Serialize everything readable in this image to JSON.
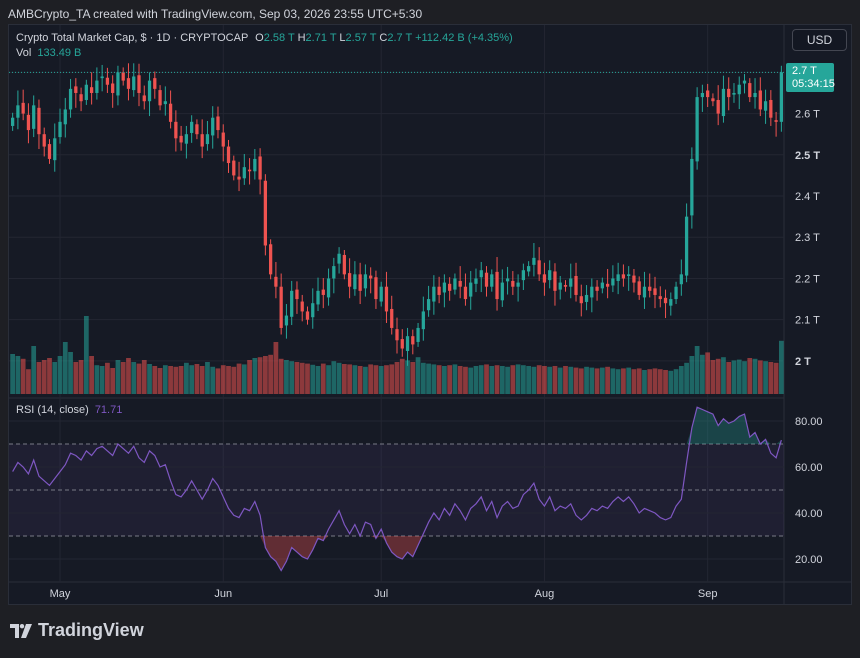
{
  "header": {
    "text": "AMBCrypto_TA created with TradingView.com, Sep 03, 2026 23:55 UTC+5:30"
  },
  "legend": {
    "title": "Crypto Total Market Cap, $ · 1D · CRYPTOCAP",
    "open_label": "O",
    "open": "2.58 T",
    "high_label": "H",
    "high": "2.71 T",
    "low_label": "L",
    "low": "2.57 T",
    "close_label": "C",
    "close": "2.7 T",
    "change": "+112.42 B (+4.35%)",
    "vol_label": "Vol",
    "vol": "133.49 B"
  },
  "rsi_legend": {
    "label": "RSI (14, close)",
    "value": "71.71"
  },
  "currency_button": "USD",
  "price_badge": {
    "price": "2.7 T",
    "countdown": "05:34:15"
  },
  "footer": {
    "brand": "TradingView"
  },
  "colors": {
    "up": "#26a69a",
    "down": "#ef5350",
    "rsi": "#7e57c2",
    "bg": "#161a25"
  },
  "chart_data": [
    {
      "type": "candlestick",
      "title": "Crypto Total Market Cap",
      "y_unit": "T",
      "ylim": [
        1.91,
        2.73
      ],
      "y_ticks": [
        "2.7 T",
        "2.6 T",
        "2.5 T",
        "2.4 T",
        "2.3 T",
        "2.2 T",
        "2.1 T",
        "2 T"
      ],
      "x_ticks": [
        "May",
        "Jun",
        "Jul",
        "Aug",
        "Sep"
      ],
      "start_date": "2026-04-22",
      "close": [
        2.59,
        2.62,
        2.6,
        2.56,
        2.62,
        2.55,
        2.52,
        2.49,
        2.54,
        2.58,
        2.61,
        2.66,
        2.65,
        2.63,
        2.67,
        2.65,
        2.68,
        2.69,
        2.67,
        2.65,
        2.7,
        2.68,
        2.66,
        2.69,
        2.65,
        2.63,
        2.68,
        2.66,
        2.62,
        2.63,
        2.58,
        2.54,
        2.53,
        2.55,
        2.58,
        2.55,
        2.52,
        2.55,
        2.59,
        2.56,
        2.52,
        2.48,
        2.45,
        2.44,
        2.47,
        2.46,
        2.49,
        2.44,
        2.28,
        2.21,
        2.18,
        2.08,
        2.11,
        2.17,
        2.15,
        2.12,
        2.1,
        2.14,
        2.17,
        2.16,
        2.2,
        2.23,
        2.26,
        2.21,
        2.18,
        2.21,
        2.17,
        2.21,
        2.2,
        2.15,
        2.18,
        2.12,
        2.08,
        2.05,
        2.03,
        2.06,
        2.04,
        2.08,
        2.12,
        2.15,
        2.18,
        2.16,
        2.19,
        2.17,
        2.2,
        2.18,
        2.15,
        2.19,
        2.2,
        2.22,
        2.18,
        2.21,
        2.15,
        2.19,
        2.2,
        2.18,
        2.19,
        2.22,
        2.23,
        2.25,
        2.21,
        2.19,
        2.22,
        2.17,
        2.19,
        2.18,
        2.2,
        2.16,
        2.14,
        2.16,
        2.18,
        2.17,
        2.19,
        2.18,
        2.2,
        2.21,
        2.2,
        2.21,
        2.19,
        2.16,
        2.18,
        2.17,
        2.16,
        2.15,
        2.14,
        2.15,
        2.18,
        2.21,
        2.35,
        2.49,
        2.64,
        2.65,
        2.64,
        2.63,
        2.6,
        2.66,
        2.64,
        2.65,
        2.67,
        2.68,
        2.64,
        2.65,
        2.61,
        2.63,
        2.59,
        2.58,
        2.7
      ],
      "volume": [
        100,
        95,
        88,
        62,
        120,
        80,
        85,
        90,
        80,
        95,
        130,
        105,
        80,
        85,
        195,
        95,
        72,
        70,
        78,
        65,
        85,
        80,
        90,
        80,
        76,
        85,
        75,
        70,
        65,
        72,
        70,
        68,
        70,
        78,
        72,
        75,
        70,
        80,
        68,
        64,
        72,
        70,
        68,
        76,
        74,
        85,
        90,
        92,
        95,
        98,
        130,
        88,
        85,
        82,
        80,
        78,
        76,
        73,
        70,
        76,
        72,
        82,
        78,
        75,
        74,
        72,
        70,
        68,
        74,
        72,
        70,
        72,
        74,
        80,
        88,
        84,
        80,
        92,
        78,
        76,
        74,
        72,
        70,
        72,
        74,
        70,
        68,
        66,
        70,
        72,
        74,
        70,
        72,
        70,
        68,
        72,
        74,
        72,
        70,
        68,
        72,
        70,
        68,
        70,
        66,
        70,
        68,
        66,
        64,
        68,
        66,
        64,
        66,
        68,
        64,
        62,
        64,
        66,
        62,
        64,
        60,
        62,
        64,
        62,
        60,
        58,
        62,
        70,
        78,
        95,
        120,
        98,
        104,
        85,
        88,
        92,
        80,
        84,
        86,
        82,
        90,
        88,
        84,
        82,
        80,
        78,
        133
      ]
    },
    {
      "type": "line",
      "title": "RSI (14, close)",
      "ylim": [
        10,
        90
      ],
      "y_ticks": [
        "80.00",
        "60.00",
        "40.00",
        "20.00"
      ],
      "bands": [
        70,
        50,
        30
      ],
      "values": [
        58,
        62,
        60,
        57,
        63,
        56,
        54,
        52,
        55,
        58,
        61,
        66,
        65,
        63,
        67,
        65,
        68,
        69,
        67,
        65,
        70,
        68,
        66,
        69,
        64,
        62,
        67,
        65,
        60,
        61,
        54,
        48,
        47,
        50,
        54,
        50,
        46,
        50,
        55,
        52,
        47,
        42,
        39,
        38,
        42,
        41,
        45,
        39,
        25,
        21,
        19,
        15,
        19,
        25,
        23,
        21,
        20,
        24,
        29,
        28,
        33,
        37,
        41,
        35,
        31,
        35,
        30,
        36,
        35,
        29,
        33,
        27,
        23,
        21,
        20,
        23,
        21,
        26,
        31,
        36,
        40,
        37,
        42,
        39,
        44,
        41,
        37,
        42,
        44,
        47,
        41,
        45,
        38,
        43,
        45,
        42,
        43,
        48,
        50,
        53,
        46,
        43,
        47,
        41,
        43,
        42,
        44,
        39,
        37,
        39,
        42,
        41,
        43,
        42,
        45,
        47,
        45,
        47,
        44,
        40,
        42,
        41,
        40,
        38,
        37,
        38,
        43,
        46,
        62,
        77,
        86,
        85,
        84,
        83,
        78,
        81,
        79,
        80,
        82,
        83,
        73,
        75,
        70,
        72,
        66,
        64,
        71.71
      ]
    }
  ]
}
